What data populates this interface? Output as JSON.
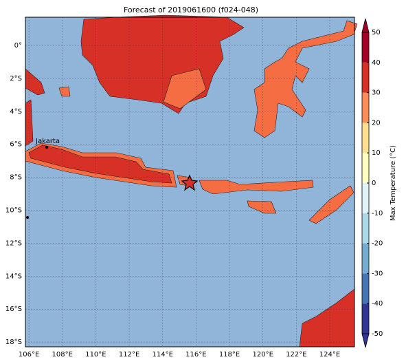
{
  "title": "Forecast of 2019061600 (f024-048)",
  "map": {
    "lonlim": [
      105.79,
      125.48
    ],
    "latlim": [
      -18.29,
      1.71
    ],
    "lon_ticks": [
      {
        "value": 106,
        "label": "106°E"
      },
      {
        "value": 108,
        "label": "108°E"
      },
      {
        "value": 110,
        "label": "110°E"
      },
      {
        "value": 112,
        "label": "112°E"
      },
      {
        "value": 114,
        "label": "114°E"
      },
      {
        "value": 116,
        "label": "116°E"
      },
      {
        "value": 118,
        "label": "118°E"
      },
      {
        "value": 120,
        "label": "120°E"
      },
      {
        "value": 122,
        "label": "122°E"
      },
      {
        "value": 124,
        "label": "124°E"
      }
    ],
    "lat_ticks": [
      {
        "value": 0,
        "label": "0°"
      },
      {
        "value": -2,
        "label": "2°S"
      },
      {
        "value": -4,
        "label": "4°S"
      },
      {
        "value": -6,
        "label": "6°S"
      },
      {
        "value": -8,
        "label": "8°S"
      },
      {
        "value": -10,
        "label": "10°S"
      },
      {
        "value": -12,
        "label": "12°S"
      },
      {
        "value": -14,
        "label": "14°S"
      },
      {
        "value": -16,
        "label": "16°S"
      },
      {
        "value": -18,
        "label": "18°S"
      }
    ],
    "places": [
      {
        "label": "Jakarta"
      }
    ]
  },
  "colorbar": {
    "label": "Max Temperature (°C)",
    "lim": [
      -50,
      50
    ],
    "ticks": [
      -50,
      -40,
      -30,
      -20,
      -10,
      0,
      10,
      20,
      30,
      40,
      50
    ],
    "colors": [
      "#313695",
      "#4575b4",
      "#74add1",
      "#abd9e9",
      "#e0f3f8",
      "#ffffbf",
      "#fee090",
      "#fc8d59",
      "#d73027",
      "#a50026"
    ]
  }
}
